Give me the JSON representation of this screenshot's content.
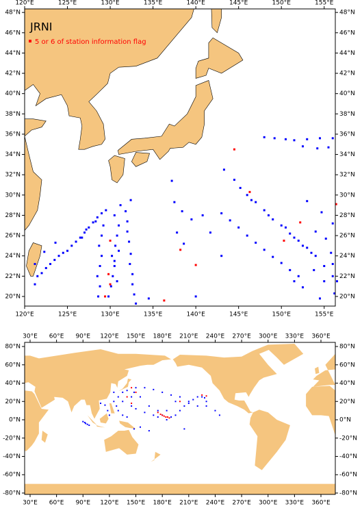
{
  "chart_data": [
    {
      "type": "scatter",
      "title": "JRNI",
      "land_color": "#f5c57f",
      "xlim": [
        120,
        156.3
      ],
      "ylim": [
        19.05,
        48.35
      ],
      "xticks": [
        {
          "value": 120,
          "label": "120°E"
        },
        {
          "value": 125,
          "label": "125°E"
        },
        {
          "value": 130,
          "label": "130°E"
        },
        {
          "value": 135,
          "label": "135°E"
        },
        {
          "value": 140,
          "label": "140°E"
        },
        {
          "value": 145,
          "label": "145°E"
        },
        {
          "value": 150,
          "label": "150°E"
        },
        {
          "value": 155,
          "label": "155°E"
        }
      ],
      "yticks": [
        {
          "value": 20,
          "label": "20°N"
        },
        {
          "value": 22,
          "label": "22°N"
        },
        {
          "value": 24,
          "label": "24°N"
        },
        {
          "value": 26,
          "label": "26°N"
        },
        {
          "value": 28,
          "label": "28°N"
        },
        {
          "value": 30,
          "label": "30°N"
        },
        {
          "value": 32,
          "label": "32°N"
        },
        {
          "value": 34,
          "label": "34°N"
        },
        {
          "value": 36,
          "label": "36°N"
        },
        {
          "value": 38,
          "label": "38°N"
        },
        {
          "value": 40,
          "label": "40°N"
        },
        {
          "value": 42,
          "label": "42°N"
        },
        {
          "value": 44,
          "label": "44°N"
        },
        {
          "value": 46,
          "label": "46°N"
        },
        {
          "value": 48,
          "label": "48°N"
        }
      ],
      "series": [
        {
          "color": "#0000ff",
          "x": [
            121.2,
            121.5,
            122,
            122.5,
            123,
            123.5,
            124,
            124.5,
            125,
            125.5,
            126,
            126.5,
            127,
            127.5,
            128,
            128.5,
            129,
            121.2,
            122.3,
            123.6,
            126.7,
            127.2,
            128.3,
            128.6,
            128.8,
            128.5,
            128.8,
            129,
            128.7,
            129,
            129.2,
            129.5,
            129.8,
            130.1,
            130.3,
            130.5,
            130.2,
            130.6,
            130.8,
            131,
            130.5,
            131.2,
            130.8,
            130.5,
            131,
            133,
            132.8,
            132.6,
            132.6,
            132.3,
            132.4,
            132.2,
            132,
            132,
            131.8,
            132.4,
            134.5,
            138.4,
            137.8,
            137.2,
            138.6,
            137.5,
            141.7,
            140.8,
            139.5,
            140,
            143,
            143.3,
            144.5,
            145.2,
            146,
            147,
            148,
            149,
            150,
            151,
            152,
            153,
            154,
            155,
            156,
            156.5,
            146.5,
            148.5,
            150.5,
            151.5,
            152.5,
            153.5,
            143,
            144,
            145,
            146,
            147,
            148,
            149,
            150,
            151,
            152,
            148,
            149.2,
            150.5,
            151.5,
            153,
            154.5,
            156,
            152.5,
            154.2,
            155.5,
            153,
            154.7,
            156,
            154,
            155.2,
            155.8,
            153.8,
            155,
            154.5,
            156.2,
            156,
            152.5,
            151.5
          ],
          "y": [
            21.2,
            22,
            22.3,
            22.8,
            23.2,
            23.6,
            24,
            24.3,
            24.5,
            25,
            25.4,
            25.8,
            26.3,
            26.8,
            27.3,
            27.8,
            28.2,
            23.2,
            24.4,
            25.3,
            25.8,
            26.6,
            27.4,
            20,
            21,
            22,
            23,
            24,
            25,
            26,
            27,
            28.5,
            20,
            21,
            22,
            23,
            24,
            25,
            26,
            27,
            28,
            29,
            21.5,
            23.5,
            24.5,
            19.3,
            20.2,
            21.2,
            22.2,
            23.2,
            24.2,
            25.4,
            26.4,
            27.4,
            28.4,
            29.5,
            19.8,
            28.4,
            26.3,
            31.4,
            25.2,
            29.3,
            26.3,
            28,
            27.6,
            20,
            24,
            32.5,
            31.5,
            30.7,
            30,
            29.3,
            28.5,
            27.6,
            27,
            26.2,
            25.5,
            24.8,
            24,
            23,
            22,
            21.5,
            29.5,
            28,
            26.8,
            25.8,
            25,
            24.3,
            28.2,
            27.5,
            26.8,
            26,
            25.3,
            24.6,
            23.9,
            23.3,
            22.6,
            22,
            35.7,
            35.6,
            35.5,
            35.4,
            35.5,
            35.6,
            35.6,
            34.8,
            34.6,
            34.7,
            29.4,
            28.3,
            27.2,
            26.4,
            25.7,
            24.3,
            22.6,
            21.5,
            19.8,
            20.3,
            23.2,
            20.9,
            21.5
          ]
        },
        {
          "name": "5 or 6 of station information flag",
          "color": "#ff0000",
          "x": [
            144.5,
            146.3,
            156.4,
            152.2,
            150.3,
            138.2,
            140,
            136.3,
            130,
            129.8,
            130,
            129.4
          ],
          "y": [
            34.5,
            30.3,
            29.1,
            27.3,
            25.5,
            24.6,
            23.1,
            19.6,
            25.5,
            22.2,
            21.2,
            20
          ]
        }
      ]
    },
    {
      "type": "scatter",
      "land_color": "#f5c57f",
      "xlim": [
        23.8,
        376.3
      ],
      "ylim": [
        -81.5,
        84.5
      ],
      "xticks": [
        {
          "value": 30,
          "label": "30°E"
        },
        {
          "value": 60,
          "label": "60°E"
        },
        {
          "value": 90,
          "label": "90°E"
        },
        {
          "value": 120,
          "label": "120°E"
        },
        {
          "value": 150,
          "label": "150°E"
        },
        {
          "value": 180,
          "label": "180°E"
        },
        {
          "value": 210,
          "label": "210°E"
        },
        {
          "value": 240,
          "label": "240°E"
        },
        {
          "value": 270,
          "label": "270°E"
        },
        {
          "value": 300,
          "label": "300°E"
        },
        {
          "value": 330,
          "label": "330°E"
        },
        {
          "value": 360,
          "label": "360°E"
        }
      ],
      "yticks": [
        {
          "value": -80,
          "label": "-80°N"
        },
        {
          "value": -60,
          "label": "-60°N"
        },
        {
          "value": -40,
          "label": "-40°N"
        },
        {
          "value": -20,
          "label": "-20°N"
        },
        {
          "value": 0,
          "label": "0°N"
        },
        {
          "value": 20,
          "label": "20°N"
        },
        {
          "value": 40,
          "label": "40°N"
        },
        {
          "value": 60,
          "label": "60°N"
        },
        {
          "value": 80,
          "label": "80°N"
        }
      ],
      "series": [
        {
          "color": "#0000ff",
          "x": [
            90,
            92,
            93,
            95,
            97,
            110,
            115,
            118,
            120,
            125,
            128,
            130,
            135,
            140,
            145,
            150,
            160,
            170,
            175,
            180,
            185,
            190,
            195,
            200,
            205,
            210,
            215,
            220,
            230,
            240,
            245,
            205,
            135,
            140,
            150,
            160,
            170,
            180,
            190,
            200,
            225,
            230,
            125,
            130,
            135,
            145,
            155,
            165,
            175,
            185,
            195,
            210,
            220,
            228,
            148,
            155,
            165,
            148
          ],
          "y": [
            -2,
            -3,
            -4,
            -5,
            -6,
            18,
            16,
            10,
            5,
            20,
            15,
            10,
            5,
            3,
            15,
            12,
            8,
            5,
            3,
            5,
            0,
            3,
            5,
            10,
            15,
            20,
            22,
            25,
            15,
            10,
            5,
            -10,
            30,
            32,
            35,
            35,
            33,
            30,
            27,
            25,
            25,
            20,
            30,
            25,
            20,
            25,
            25,
            15,
            10,
            10,
            20,
            18,
            15,
            24,
            -10,
            -8,
            -12,
            30
          ]
        },
        {
          "color": "#ff0000",
          "x": [
            145,
            150,
            140,
            175,
            178,
            180,
            182,
            184,
            186,
            188,
            145,
            200,
            225,
            230
          ],
          "y": [
            35,
            30,
            25,
            8,
            6,
            5,
            4,
            3,
            3,
            2,
            18,
            20,
            27,
            26
          ]
        }
      ]
    }
  ]
}
